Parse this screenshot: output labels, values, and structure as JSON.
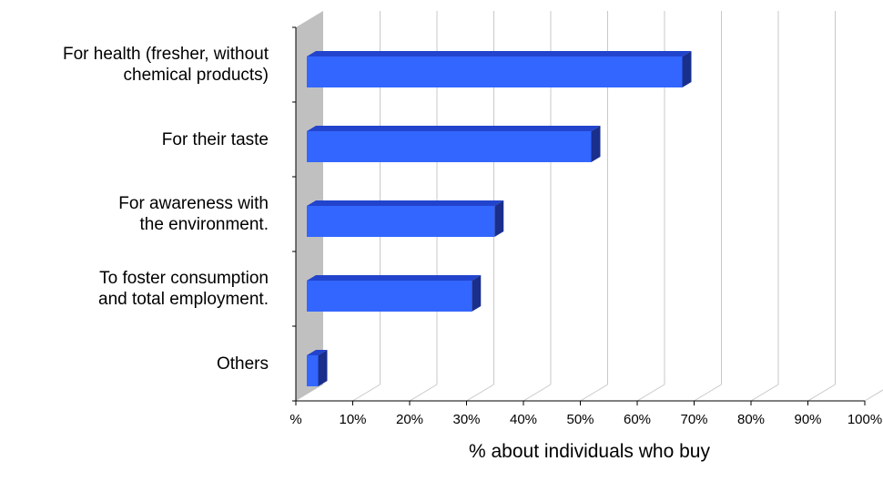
{
  "chart_data": {
    "type": "bar",
    "orientation": "horizontal",
    "three_d": true,
    "categories": [
      "For health (fresher, without\nchemical products)",
      "For their taste",
      "For awareness with\nthe environment.",
      "To foster consumption\nand total employment.",
      "Others"
    ],
    "values": [
      66,
      50,
      33,
      29,
      2
    ],
    "x_ticks": [
      "%",
      "10%",
      "20%",
      "30%",
      "40%",
      "50%",
      "60%",
      "70%",
      "80%",
      "90%",
      "100%"
    ],
    "xlim": [
      0,
      100
    ],
    "xlabel": "% about individuals who buy",
    "grid": true,
    "colors": {
      "bar_face": "#3366ff",
      "bar_top": "#2244cc",
      "bar_side": "#1a2f8c",
      "wall": "#c0c0c0",
      "grid": "#c8c8c8"
    }
  }
}
